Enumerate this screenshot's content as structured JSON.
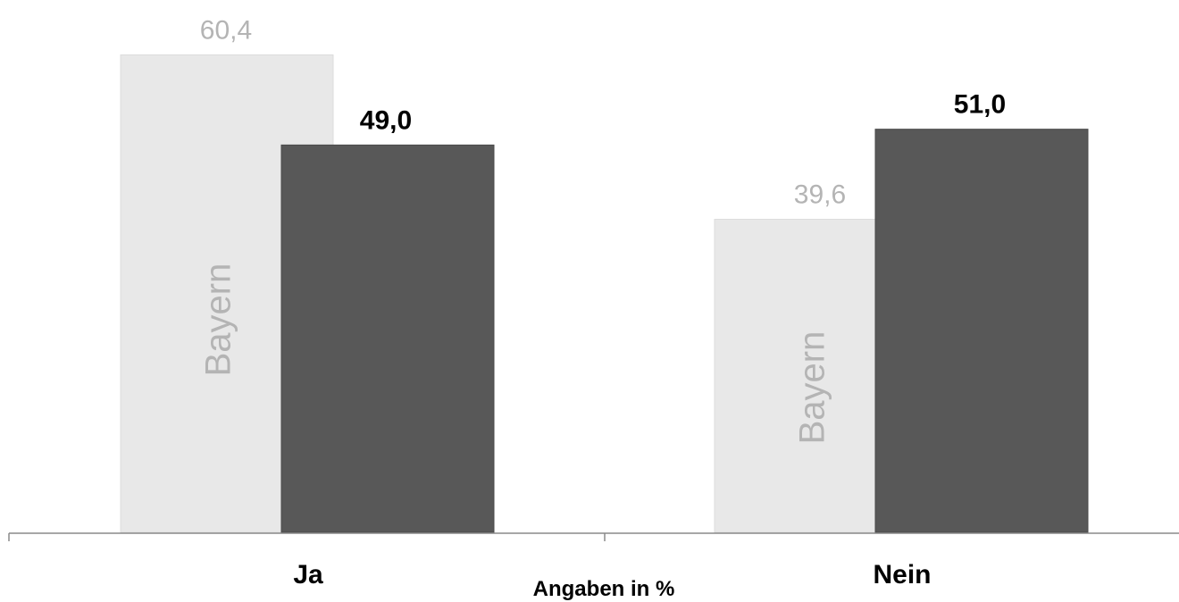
{
  "chart_data": {
    "type": "bar",
    "categories": [
      "Ja",
      "Nein"
    ],
    "series": [
      {
        "name": "Bayern",
        "values": [
          60.4,
          39.6
        ],
        "labels": [
          "60,4",
          "39,6"
        ],
        "color": "#e8e8e8",
        "label_color": "#b4b4b4"
      },
      {
        "values": [
          49.0,
          51.0
        ],
        "labels": [
          "49,0",
          "51,0"
        ],
        "color": "#585858",
        "label_color": "#000000"
      }
    ],
    "ylim": [
      0,
      65
    ],
    "grid": false,
    "legend": "none",
    "note": "Angaben in %"
  }
}
